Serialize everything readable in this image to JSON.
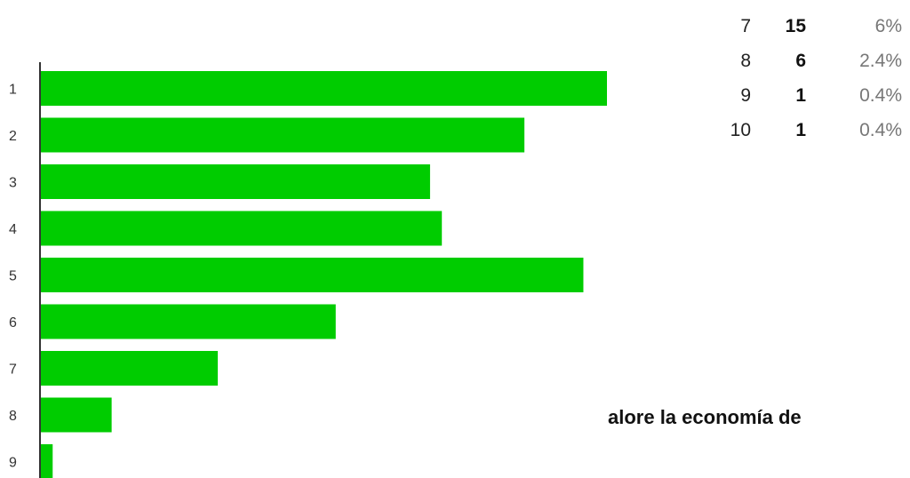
{
  "chart_data": {
    "type": "bar",
    "orientation": "horizontal",
    "categories": [
      "1",
      "2",
      "3",
      "4",
      "5",
      "6",
      "7",
      "8",
      "9"
    ],
    "values": [
      48,
      41,
      33,
      34,
      46,
      25,
      15,
      6,
      1
    ],
    "xlim": [
      0,
      48
    ],
    "grid": false,
    "bar_color": "#00cc00",
    "axis_color": "#333333"
  },
  "summary": {
    "rows": [
      {
        "label": "7",
        "count": "15",
        "percent": "6%"
      },
      {
        "label": "8",
        "count": "6",
        "percent": "2.4%"
      },
      {
        "label": "9",
        "count": "1",
        "percent": "0.4%"
      },
      {
        "label": "10",
        "count": "1",
        "percent": "0.4%"
      }
    ]
  },
  "question": {
    "text_fragment": "alore la economía de"
  }
}
